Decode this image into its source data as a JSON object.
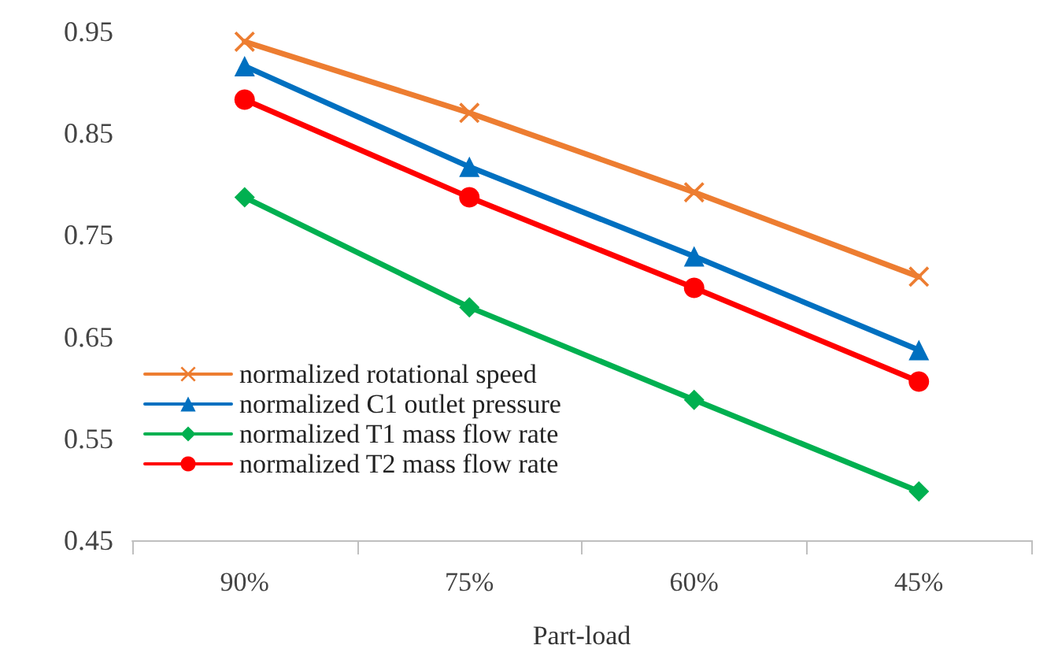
{
  "chart_data": {
    "type": "line",
    "xlabel": "Part-load",
    "categories": [
      "90%",
      "75%",
      "60%",
      "45%"
    ],
    "series": [
      {
        "name": "normalized rotational speed",
        "color": "#ed7d31",
        "marker": "cross",
        "values": [
          0.94,
          0.87,
          0.792,
          0.709
        ]
      },
      {
        "name": "normalized C1 outlet pressure",
        "color": "#0070c0",
        "marker": "triangle",
        "values": [
          0.916,
          0.817,
          0.729,
          0.637
        ]
      },
      {
        "name": "normalized T1 mass flow rate",
        "color": "#00b050",
        "marker": "diamond",
        "values": [
          0.787,
          0.679,
          0.588,
          0.498
        ]
      },
      {
        "name": "normalized T2 mass flow rate",
        "color": "#ff0000",
        "marker": "circle",
        "values": [
          0.883,
          0.787,
          0.698,
          0.606
        ]
      }
    ],
    "ylim": [
      0.45,
      0.95
    ],
    "yticks": [
      0.45,
      0.55,
      0.65,
      0.75,
      0.85,
      0.95
    ],
    "grid": false,
    "legend": "bottom left",
    "line_style": "solid"
  }
}
